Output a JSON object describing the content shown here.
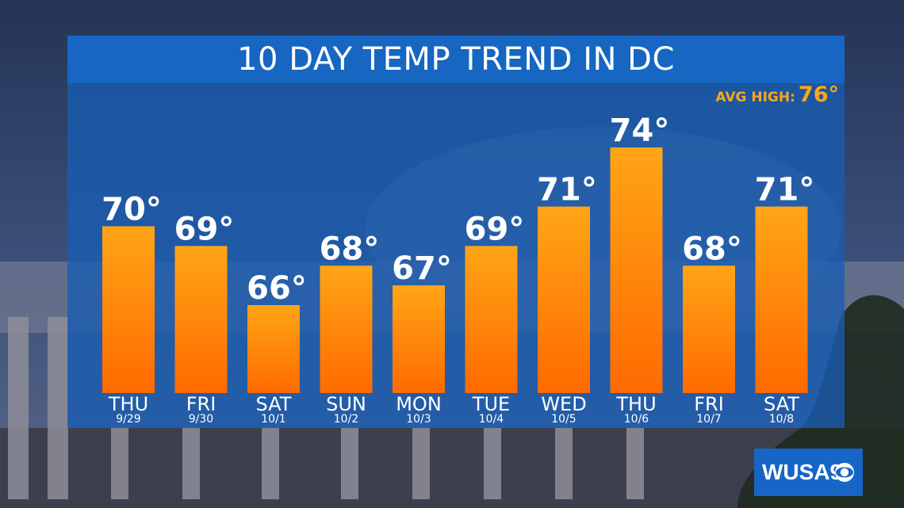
{
  "colors": {
    "bar_top": "#ffa516",
    "bar_bottom": "#ff6a00",
    "panel": "#1a5cb2",
    "accent": "#f7a81b"
  },
  "header": {
    "title": "10 DAY TEMP TREND IN DC"
  },
  "avg_high": {
    "label": "AVG HIGH:",
    "value": "76°"
  },
  "logo": {
    "text": "WUSA9"
  },
  "chart_data": {
    "type": "bar",
    "title": "10 DAY TEMP TREND IN DC",
    "categories": [
      "THU",
      "FRI",
      "SAT",
      "SUN",
      "MON",
      "TUE",
      "WED",
      "THU",
      "FRI",
      "SAT"
    ],
    "dates": [
      "9/29",
      "9/30",
      "10/1",
      "10/2",
      "10/3",
      "10/4",
      "10/5",
      "10/6",
      "10/7",
      "10/8"
    ],
    "values": [
      70,
      69,
      66,
      68,
      67,
      69,
      71,
      74,
      68,
      71
    ],
    "value_labels": [
      "70°",
      "69°",
      "66°",
      "68°",
      "67°",
      "69°",
      "71°",
      "74°",
      "68°",
      "71°"
    ],
    "grid": false
  }
}
